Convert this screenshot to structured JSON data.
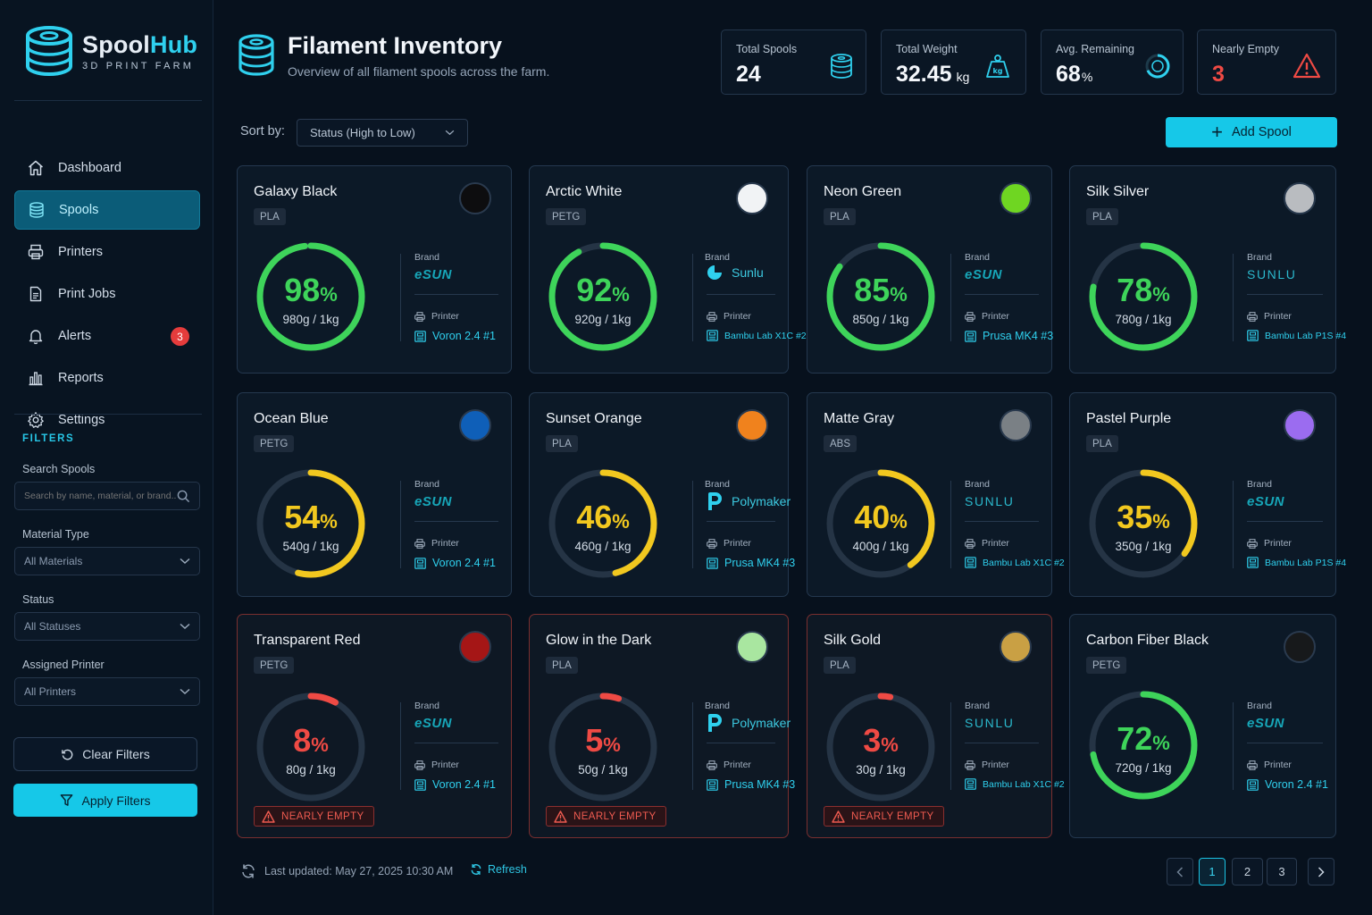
{
  "app": {
    "name_part1": "Spool",
    "name_part2": "Hub",
    "subtitle": "3D PRINT FARM"
  },
  "nav": [
    {
      "label": "Dashboard",
      "icon": "home-icon"
    },
    {
      "label": "Spools",
      "icon": "spool-icon",
      "active": true
    },
    {
      "label": "Printers",
      "icon": "printer-icon"
    },
    {
      "label": "Print Jobs",
      "icon": "document-icon"
    },
    {
      "label": "Alerts",
      "icon": "bell-icon",
      "badge": "3"
    },
    {
      "label": "Reports",
      "icon": "bar-chart-icon"
    },
    {
      "label": "Settings",
      "icon": "gear-icon"
    }
  ],
  "filters": {
    "title": "FILTERS",
    "search_label": "Search Spools",
    "search_placeholder": "Search by name, material, or brand...",
    "material_label": "Material Type",
    "material_value": "All Materials",
    "status_label": "Status",
    "status_value": "All Statuses",
    "printer_label": "Assigned Printer",
    "printer_value": "All Printers",
    "clear_label": "Clear Filters",
    "apply_label": "Apply Filters"
  },
  "header": {
    "title": "Filament Inventory",
    "subtitle": "Overview of all filament spools across the farm."
  },
  "stats": [
    {
      "label": "Total Spools",
      "value": "24",
      "unit": ""
    },
    {
      "label": "Total Weight",
      "value": "32.45",
      "unit": "kg"
    },
    {
      "label": "Avg. Remaining",
      "value": "68",
      "unit": "%"
    },
    {
      "label": "Nearly Empty",
      "value": "3",
      "unit": ""
    }
  ],
  "sort": {
    "label": "Sort by:",
    "value": "Status (High to Low)"
  },
  "add_button": "Add Spool",
  "labels": {
    "brand": "Brand",
    "printer": "Printer",
    "pct": "%",
    "warning": "NEARLY EMPTY"
  },
  "colors": {
    "accent": "#16c8e8",
    "green": "#3ed45a",
    "yellow": "#f2c81f",
    "red": "#ef4a44"
  },
  "spools": [
    {
      "name": "Galaxy Black",
      "material": "PLA",
      "color": "#0d0d0f",
      "percent": 98,
      "pct_text": "98",
      "weight": "980g / 1kg",
      "brand": "eSUN",
      "printer": "Voron 2.4 #1",
      "status": "green"
    },
    {
      "name": "Arctic White",
      "material": "PETG",
      "color": "#f1f3f5",
      "percent": 92,
      "pct_text": "92",
      "weight": "920g / 1kg",
      "brand": "Sunlu",
      "printer": "Bambu Lab X1C #2",
      "status": "green"
    },
    {
      "name": "Neon Green",
      "material": "PLA",
      "color": "#6fd622",
      "percent": 85,
      "pct_text": "85",
      "weight": "850g / 1kg",
      "brand": "eSUN",
      "printer": "Prusa MK4 #3",
      "status": "green"
    },
    {
      "name": "Silk Silver",
      "material": "PLA",
      "color": "#b9bcc0",
      "percent": 78,
      "pct_text": "78",
      "weight": "780g / 1kg",
      "brand": "SUNLU",
      "printer": "Bambu Lab P1S #4",
      "status": "green"
    },
    {
      "name": "Ocean Blue",
      "material": "PETG",
      "color": "#0f5fb8",
      "percent": 54,
      "pct_text": "54",
      "weight": "540g / 1kg",
      "brand": "eSUN",
      "printer": "Voron 2.4 #1",
      "status": "yellow"
    },
    {
      "name": "Sunset Orange",
      "material": "PLA",
      "color": "#f0821d",
      "percent": 46,
      "pct_text": "46",
      "weight": "460g / 1kg",
      "brand": "Polymaker",
      "printer": "Prusa MK4 #3",
      "status": "yellow"
    },
    {
      "name": "Matte Gray",
      "material": "ABS",
      "color": "#7a8085",
      "percent": 40,
      "pct_text": "40",
      "weight": "400g / 1kg",
      "brand": "SUNLU",
      "printer": "Bambu Lab X1C #2",
      "status": "yellow"
    },
    {
      "name": "Pastel Purple",
      "material": "PLA",
      "color": "#9b6cf0",
      "percent": 35,
      "pct_text": "35",
      "weight": "350g / 1kg",
      "brand": "eSUN",
      "printer": "Bambu Lab P1S #4",
      "status": "yellow"
    },
    {
      "name": "Transparent Red",
      "material": "PETG",
      "color": "#a51616",
      "percent": 8,
      "pct_text": "8",
      "weight": "80g / 1kg",
      "brand": "eSUN",
      "printer": "Voron 2.4 #1",
      "status": "red",
      "warning": true
    },
    {
      "name": "Glow in the Dark",
      "material": "PLA",
      "color": "#a9e6a0",
      "percent": 5,
      "pct_text": "5",
      "weight": "50g / 1kg",
      "brand": "Polymaker",
      "printer": "Prusa MK4 #3",
      "status": "red",
      "warning": true
    },
    {
      "name": "Silk Gold",
      "material": "PLA",
      "color": "#c9a044",
      "percent": 3,
      "pct_text": "3",
      "weight": "30g / 1kg",
      "brand": "SUNLU",
      "printer": "Bambu Lab X1C #2",
      "status": "red",
      "warning": true
    },
    {
      "name": "Carbon Fiber Black",
      "material": "PETG",
      "color": "#17191b",
      "percent": 72,
      "pct_text": "72",
      "weight": "720g / 1kg",
      "brand": "eSUN",
      "printer": "Voron 2.4 #1",
      "status": "green"
    }
  ],
  "footer": {
    "updated": "Last updated: May 27, 2025 10:30 AM",
    "refresh": "Refresh",
    "pages": [
      "1",
      "2",
      "3"
    ],
    "current_page": "1"
  }
}
